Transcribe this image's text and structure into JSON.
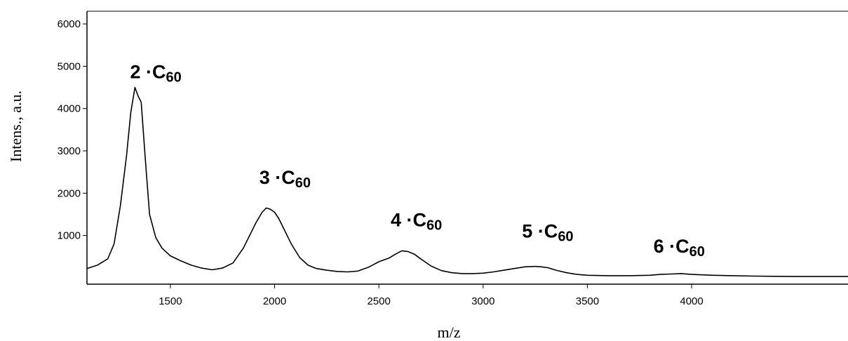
{
  "chart_data": {
    "type": "line",
    "xlabel": "m/z",
    "ylabel": "Intens., a.u.",
    "xlim": [
      1100,
      4750
    ],
    "ylim": [
      -150,
      6300
    ],
    "xticks": [
      1500,
      2000,
      2500,
      3000,
      3500,
      4000
    ],
    "yticks": [
      1000,
      2000,
      3000,
      4000,
      5000,
      6000
    ],
    "grid": false,
    "annotations": [
      {
        "text": "2 ·C60",
        "base": "2 ·C",
        "sub": "60",
        "x": 1430,
        "y": 4720
      },
      {
        "text": "3 ·C60",
        "base": "3 ·C",
        "sub": "60",
        "x": 2050,
        "y": 2220
      },
      {
        "text": "4 ·C60",
        "base": "4 ·C",
        "sub": "60",
        "x": 2680,
        "y": 1220
      },
      {
        "text": "5 ·C60",
        "base": "5 ·C",
        "sub": "60",
        "x": 3310,
        "y": 950
      },
      {
        "text": "6 ·C60",
        "base": "6 ·C",
        "sub": "60",
        "x": 3940,
        "y": 600
      }
    ],
    "series": [
      {
        "x": [
          1100,
          1150,
          1200,
          1230,
          1260,
          1290,
          1310,
          1330,
          1345,
          1360,
          1380,
          1400,
          1430,
          1460,
          1500,
          1550,
          1600,
          1650,
          1700,
          1750,
          1800,
          1850,
          1880,
          1910,
          1940,
          1960,
          1980,
          2000,
          2020,
          2050,
          2080,
          2120,
          2160,
          2200,
          2250,
          2300,
          2350,
          2400,
          2450,
          2500,
          2550,
          2580,
          2610,
          2640,
          2670,
          2700,
          2750,
          2800,
          2850,
          2900,
          2950,
          3000,
          3050,
          3100,
          3150,
          3200,
          3250,
          3280,
          3310,
          3350,
          3400,
          3450,
          3500,
          3600,
          3700,
          3800,
          3850,
          3900,
          3950,
          4000,
          4100,
          4200,
          4300,
          4400,
          4500,
          4600,
          4750
        ],
        "y": [
          220,
          300,
          450,
          800,
          1700,
          2900,
          3900,
          4500,
          4300,
          4150,
          2800,
          1500,
          950,
          700,
          520,
          400,
          300,
          230,
          190,
          230,
          350,
          700,
          1000,
          1300,
          1550,
          1650,
          1620,
          1550,
          1400,
          1100,
          800,
          480,
          300,
          220,
          180,
          150,
          140,
          160,
          250,
          380,
          470,
          560,
          640,
          620,
          560,
          450,
          280,
          170,
          120,
          100,
          100,
          110,
          140,
          180,
          220,
          260,
          270,
          260,
          240,
          180,
          120,
          80,
          60,
          50,
          50,
          60,
          80,
          90,
          100,
          80,
          60,
          50,
          40,
          35,
          30,
          30,
          30
        ]
      }
    ]
  }
}
